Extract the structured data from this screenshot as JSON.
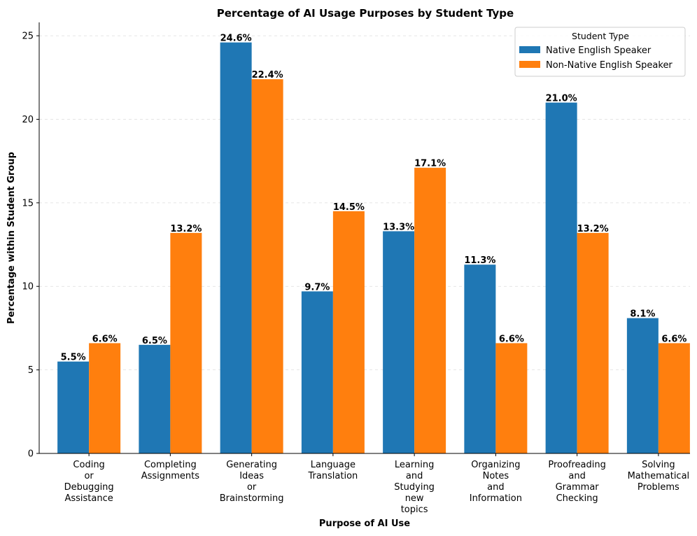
{
  "chart_data": {
    "type": "bar",
    "title": "Percentage of AI Usage Purposes by Student Type",
    "xlabel": "Purpose of AI Use",
    "ylabel": "Percentage within Student Group",
    "ylim": [
      0,
      25.8
    ],
    "yticks": [
      "0",
      "5",
      "10",
      "15",
      "20",
      "25"
    ],
    "grid": "horizontal dashed",
    "legend_title": "Student Type",
    "legend_position": "top-right",
    "categories": [
      [
        "Coding",
        "or",
        "Debugging",
        "Assistance"
      ],
      [
        "Completing",
        "Assignments"
      ],
      [
        "Generating",
        "Ideas",
        "or",
        "Brainstorming"
      ],
      [
        "Language",
        "Translation"
      ],
      [
        "Learning",
        "and",
        "Studying",
        "new",
        "topics"
      ],
      [
        "Organizing",
        "Notes",
        "and",
        "Information"
      ],
      [
        "Proofreading",
        "and",
        "Grammar",
        "Checking"
      ],
      [
        "Solving",
        "Mathematical",
        "Problems"
      ]
    ],
    "series": [
      {
        "name": "Native English Speaker",
        "color": "#1f77b4",
        "values": [
          5.5,
          6.5,
          24.6,
          9.7,
          13.3,
          11.3,
          21.0,
          8.1
        ],
        "labels": [
          "5.5%",
          "6.5%",
          "24.6%",
          "9.7%",
          "13.3%",
          "11.3%",
          "21.0%",
          "8.1%"
        ]
      },
      {
        "name": "Non-Native English Speaker",
        "color": "#ff7f0e",
        "values": [
          6.6,
          13.2,
          22.4,
          14.5,
          17.1,
          6.6,
          13.2,
          6.6
        ],
        "labels": [
          "6.6%",
          "13.2%",
          "22.4%",
          "14.5%",
          "17.1%",
          "6.6%",
          "13.2%",
          "6.6%"
        ]
      }
    ]
  }
}
